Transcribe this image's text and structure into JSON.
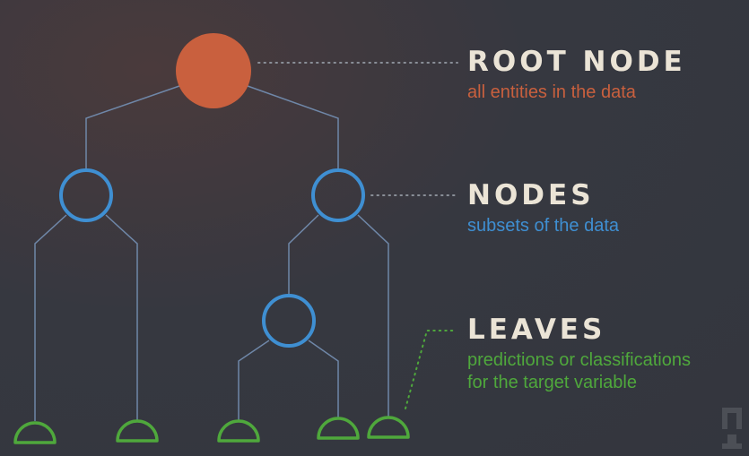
{
  "colors": {
    "root": "#c9603e",
    "node": "#3f8fd2",
    "leaf": "#4fa83c",
    "branch": "#6f87a8",
    "title": "#ebe4d6",
    "dots": "#8a8f98"
  },
  "diagram": {
    "root": {
      "title": "ROOT NODE",
      "description": "all entities in the data"
    },
    "nodes": {
      "title": "NODES",
      "description": "subsets of the data"
    },
    "leaves": {
      "title": "LEAVES",
      "description_line1": "predictions or classifications",
      "description_line2": "for the target variable"
    }
  }
}
